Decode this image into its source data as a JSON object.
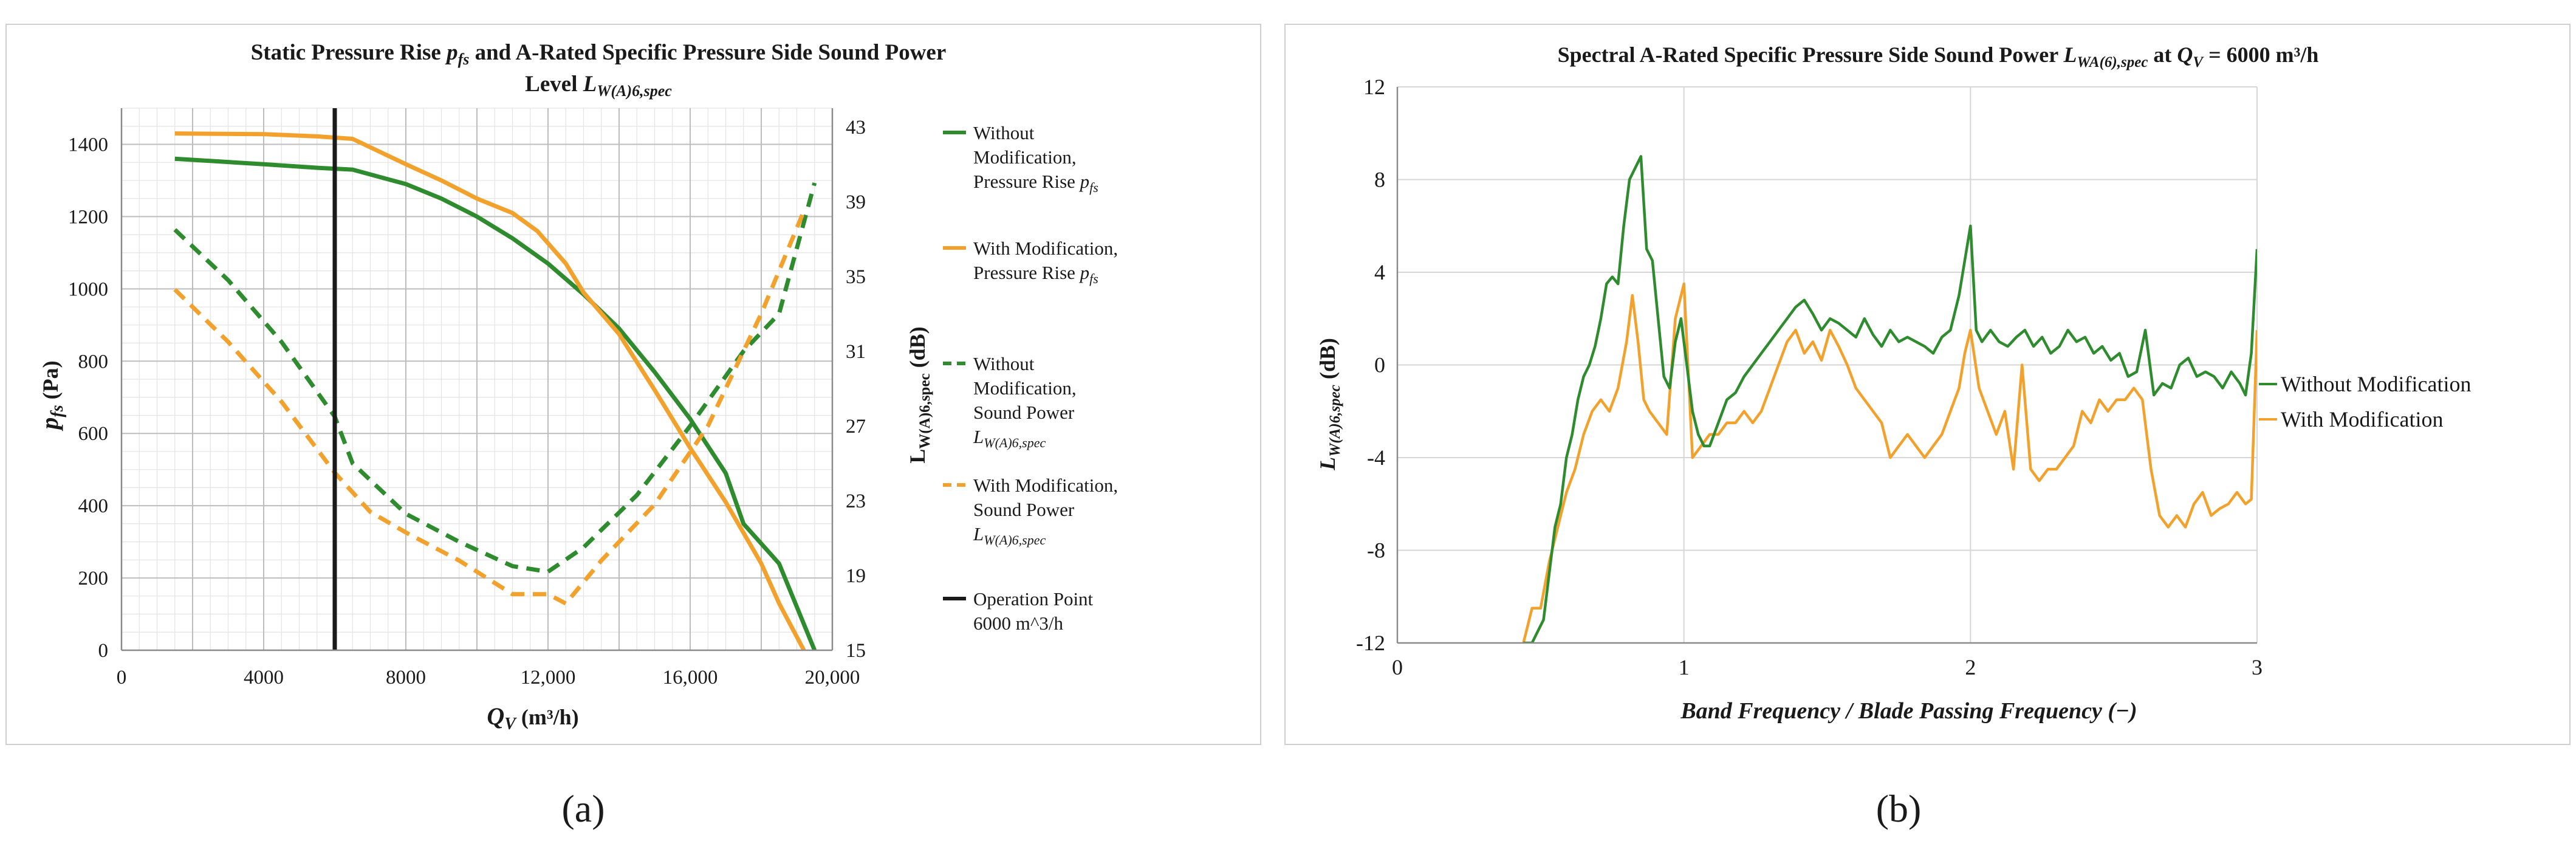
{
  "panels": [
    {
      "label": "(a)"
    },
    {
      "label": "(b)"
    }
  ],
  "chart_data": [
    {
      "type": "line",
      "title_line1": "Static Pressure Rise ",
      "title_sym": "p",
      "title_sym_sub": "fs",
      "title_mid": " and A-Rated Specific Pressure Side Sound Power",
      "title_line2": "Level ",
      "title_sym2": "L",
      "title_sym2_sub": "W(A)6,spec",
      "xlabel_sym": "Q",
      "xlabel_sub": "V",
      "xlabel_unit": " (m³/h)",
      "ylabel_sym": "p",
      "ylabel_sub": "fs",
      "ylabel_unit": " (Pa)",
      "y2label_sym": "L",
      "y2label_sub": "W(A)6,spec",
      "y2label_unit": " (dB)",
      "xlim": [
        0,
        20000
      ],
      "ylim": [
        0,
        1500
      ],
      "y2lim": [
        15,
        44
      ],
      "xticks": [
        "0",
        "4000",
        "8000",
        "12,000",
        "16,000",
        "20,000"
      ],
      "yticks": [
        "0",
        "200",
        "400",
        "600",
        "800",
        "1000",
        "1200",
        "1400"
      ],
      "y2ticks": [
        "15",
        "19",
        "23",
        "27",
        "31",
        "35",
        "39",
        "43"
      ],
      "grid": true,
      "legend_position": "right",
      "operation_point_x": 6000,
      "series": [
        {
          "legend_lines": [
            "Without",
            "Modification,",
            "Pressure Rise "
          ],
          "legend_sym": "p",
          "legend_sub": "fs",
          "axis": "left",
          "style": "solid",
          "color": "#2e8b2e",
          "x": [
            1500,
            4000,
            5500,
            6500,
            8000,
            9000,
            10000,
            11000,
            12000,
            13000,
            14000,
            15000,
            16000,
            17000,
            17500,
            18500,
            19000,
            19500
          ],
          "values": [
            1360,
            1345,
            1335,
            1330,
            1290,
            1250,
            1200,
            1140,
            1070,
            985,
            890,
            770,
            640,
            490,
            350,
            240,
            120,
            0
          ]
        },
        {
          "legend_lines": [
            "With Modification,",
            "Pressure Rise "
          ],
          "legend_sym": "p",
          "legend_sub": "fs",
          "axis": "left",
          "style": "solid",
          "color": "#f2a22c",
          "x": [
            1500,
            4000,
            5500,
            6500,
            8000,
            9000,
            10000,
            11000,
            11700,
            12500,
            13000,
            14000,
            15000,
            16000,
            17000,
            18000,
            18500,
            19200
          ],
          "values": [
            1430,
            1428,
            1422,
            1415,
            1345,
            1300,
            1250,
            1210,
            1160,
            1070,
            990,
            875,
            720,
            560,
            410,
            240,
            130,
            0
          ]
        },
        {
          "legend_lines": [
            "Without",
            "Modification,",
            "Sound Power"
          ],
          "legend_sym": "L",
          "legend_sub": "W(A)6,spec",
          "axis": "right",
          "style": "dashed",
          "color": "#2e8b2e",
          "x": [
            1500,
            3000,
            4500,
            6000,
            6500,
            8000,
            9500,
            11000,
            12000,
            13000,
            14500,
            16000,
            17500,
            18500,
            19500
          ],
          "values": [
            37.5,
            34.8,
            31.5,
            27.5,
            25,
            22.3,
            20.8,
            19.5,
            19.2,
            20.5,
            23.3,
            27,
            31,
            33,
            40
          ]
        },
        {
          "legend_lines": [
            "With Modification,",
            "Sound Power"
          ],
          "legend_sym": "L",
          "legend_sub": "W(A)6,spec",
          "axis": "right",
          "style": "dashed",
          "color": "#f2a22c",
          "x": [
            1500,
            3000,
            4500,
            6000,
            7000,
            8000,
            9500,
            11000,
            12000,
            12500,
            13500,
            15000,
            16500,
            18000,
            19200
          ],
          "values": [
            34.3,
            31.5,
            28.3,
            24.5,
            22.4,
            21.3,
            19.8,
            18,
            18,
            17.5,
            19.8,
            22.8,
            27,
            33,
            38.5
          ]
        }
      ],
      "operation_legend_lines": [
        "Operation Point",
        "6000 m^3/h"
      ]
    },
    {
      "type": "line",
      "title_pre": "Spectral A-Rated Specific Pressure Side Sound Power ",
      "title_sym": "L",
      "title_sym_sub": "WA(6),spec",
      "title_mid": " at ",
      "title_sym2": "Q",
      "title_sym2_sub": "V",
      "title_post": " = 6000 m³/h",
      "xlabel": "Band Frequency / Blade Passing Frequency (−)",
      "ylabel_sym": "L",
      "ylabel_sub": "W(A)6,spec",
      "ylabel_unit": " (dB)",
      "xlim": [
        0,
        3
      ],
      "ylim": [
        -12,
        12
      ],
      "xticks": [
        "0",
        "1",
        "2",
        "3"
      ],
      "yticks": [
        "-12",
        "-8",
        "-4",
        "0",
        "4",
        "8",
        "12"
      ],
      "grid": true,
      "legend_position": "right",
      "series": [
        {
          "name": "Without Modification",
          "color": "#2e8b2e",
          "x": [
            0.44,
            0.47,
            0.49,
            0.51,
            0.53,
            0.55,
            0.57,
            0.59,
            0.61,
            0.63,
            0.65,
            0.67,
            0.69,
            0.71,
            0.73,
            0.75,
            0.77,
            0.79,
            0.81,
            0.83,
            0.85,
            0.87,
            0.89,
            0.91,
            0.93,
            0.95,
            0.97,
            0.99,
            1.01,
            1.03,
            1.05,
            1.07,
            1.09,
            1.12,
            1.15,
            1.18,
            1.21,
            1.24,
            1.27,
            1.3,
            1.33,
            1.36,
            1.39,
            1.42,
            1.45,
            1.48,
            1.51,
            1.54,
            1.57,
            1.6,
            1.63,
            1.66,
            1.69,
            1.72,
            1.75,
            1.78,
            1.81,
            1.84,
            1.87,
            1.9,
            1.93,
            1.96,
            1.98,
            2.0,
            2.02,
            2.04,
            2.07,
            2.1,
            2.13,
            2.16,
            2.19,
            2.22,
            2.25,
            2.28,
            2.31,
            2.34,
            2.37,
            2.4,
            2.43,
            2.46,
            2.49,
            2.52,
            2.55,
            2.58,
            2.61,
            2.64,
            2.67,
            2.7,
            2.73,
            2.76,
            2.79,
            2.82,
            2.85,
            2.88,
            2.91,
            2.94,
            2.96,
            2.98,
            3.0
          ],
          "values": [
            -12,
            -12,
            -11.5,
            -11,
            -9,
            -7,
            -6,
            -4,
            -3,
            -1.5,
            -0.5,
            0,
            0.8,
            2,
            3.5,
            3.8,
            3.5,
            6,
            8,
            8.5,
            9,
            5,
            4.5,
            2,
            -0.5,
            -1,
            1,
            2,
            0,
            -2,
            -3,
            -3.5,
            -3.5,
            -2.5,
            -1.5,
            -1.2,
            -0.5,
            0,
            0.5,
            1,
            1.5,
            2,
            2.5,
            2.8,
            2.2,
            1.5,
            2,
            1.8,
            1.5,
            1.2,
            2,
            1.3,
            0.8,
            1.5,
            1,
            1.2,
            1,
            0.8,
            0.5,
            1.2,
            1.5,
            3,
            4.5,
            6,
            1.5,
            1,
            1.5,
            1,
            0.8,
            1.2,
            1.5,
            0.8,
            1.2,
            0.5,
            0.8,
            1.5,
            1,
            1.2,
            0.5,
            0.8,
            0.2,
            0.5,
            -0.5,
            -0.3,
            1.5,
            -1.3,
            -0.8,
            -1,
            0,
            0.3,
            -0.5,
            -0.3,
            -0.5,
            -1,
            -0.3,
            -0.8,
            -1.3,
            0.5,
            5
          ]
        },
        {
          "name": "With Modification",
          "color": "#f2a22c",
          "x": [
            0.44,
            0.47,
            0.5,
            0.53,
            0.56,
            0.59,
            0.62,
            0.65,
            0.68,
            0.71,
            0.74,
            0.77,
            0.8,
            0.82,
            0.84,
            0.86,
            0.88,
            0.91,
            0.94,
            0.97,
            1.0,
            1.03,
            1.06,
            1.09,
            1.12,
            1.15,
            1.18,
            1.21,
            1.24,
            1.27,
            1.3,
            1.33,
            1.36,
            1.39,
            1.42,
            1.45,
            1.48,
            1.51,
            1.54,
            1.57,
            1.6,
            1.63,
            1.66,
            1.69,
            1.72,
            1.75,
            1.78,
            1.81,
            1.84,
            1.87,
            1.9,
            1.93,
            1.96,
            1.98,
            2.0,
            2.03,
            2.06,
            2.09,
            2.12,
            2.15,
            2.18,
            2.21,
            2.24,
            2.27,
            2.3,
            2.33,
            2.36,
            2.39,
            2.42,
            2.45,
            2.48,
            2.51,
            2.54,
            2.57,
            2.6,
            2.63,
            2.66,
            2.69,
            2.72,
            2.75,
            2.78,
            2.81,
            2.84,
            2.87,
            2.9,
            2.93,
            2.96,
            2.98,
            3.0
          ],
          "values": [
            -12,
            -10.5,
            -10.5,
            -8.5,
            -7,
            -5.5,
            -4.5,
            -3,
            -2,
            -1.5,
            -2,
            -1,
            1,
            3,
            1,
            -1.5,
            -2,
            -2.5,
            -3,
            2,
            3.5,
            -4,
            -3.5,
            -3,
            -3,
            -2.5,
            -2.5,
            -2,
            -2.5,
            -2,
            -1,
            0,
            1,
            1.5,
            0.5,
            1,
            0.2,
            1.5,
            0.8,
            0,
            -1,
            -1.5,
            -2,
            -2.5,
            -4,
            -3.5,
            -3,
            -3.5,
            -4,
            -3.5,
            -3,
            -2,
            -1,
            0.5,
            1.5,
            -1,
            -2,
            -3,
            -2,
            -4.5,
            0,
            -4.5,
            -5,
            -4.5,
            -4.5,
            -4,
            -3.5,
            -2,
            -2.5,
            -1.5,
            -2,
            -1.5,
            -1.5,
            -1,
            -1.5,
            -4.5,
            -6.5,
            -7,
            -6.5,
            -7,
            -6,
            -5.5,
            -6.5,
            -6.2,
            -6,
            -5.5,
            -6,
            -5.8,
            1.5
          ]
        }
      ]
    }
  ]
}
